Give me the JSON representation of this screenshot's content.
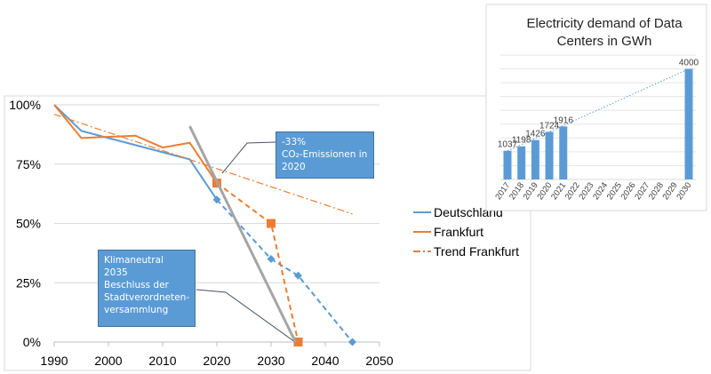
{
  "chart_data": [
    {
      "type": "line",
      "title": "",
      "xlabel": "",
      "ylabel": "",
      "xlim": [
        1990,
        2050
      ],
      "ylim": [
        0,
        100
      ],
      "x_ticks": [
        "1990",
        "2000",
        "2010",
        "2020",
        "2030",
        "2040",
        "2050"
      ],
      "y_ticks": [
        "0%",
        "25%",
        "50%",
        "75%",
        "100%"
      ],
      "grid": "horizontal",
      "legend_position": "right",
      "series": [
        {
          "name": "Deutschland",
          "color": "#5b9bd5",
          "style": "solid",
          "x": [
            1990,
            1995,
            2000,
            2005,
            2010,
            2015,
            2020
          ],
          "y": [
            100,
            89,
            86,
            83,
            80,
            77,
            60
          ]
        },
        {
          "name": "Frankfurt",
          "color": "#ed7d31",
          "style": "solid",
          "x": [
            1990,
            1995,
            2000,
            2005,
            2010,
            2015,
            2020
          ],
          "y": [
            100,
            86,
            86.5,
            87,
            82,
            84,
            67
          ]
        },
        {
          "name": "Trend Frankfurt",
          "color": "#ed7d31",
          "style": "dashdot",
          "x": [
            1990,
            2045
          ],
          "y": [
            96,
            54
          ]
        },
        {
          "color": "#5b9bd5",
          "style": "dashed",
          "marker": "diamond",
          "x": [
            2020,
            2030,
            2035,
            2045
          ],
          "y": [
            60,
            35,
            28,
            0
          ]
        },
        {
          "color": "#ed7d31",
          "style": "dashed",
          "marker": "square",
          "x": [
            2020,
            2030,
            2035
          ],
          "y": [
            67,
            50,
            0
          ]
        },
        {
          "color": "#a5a5a5",
          "style": "solid",
          "x": [
            2015,
            2034.5
          ],
          "y": [
            91,
            0
          ]
        }
      ],
      "annotations": [
        {
          "lines": [
            "-33%",
            "CO₂-Emissionen in",
            "2020"
          ]
        },
        {
          "lines": [
            "Klimaneutral 2035",
            "Beschluss der",
            "Stadtverordneten-",
            "versammlung"
          ]
        }
      ]
    },
    {
      "type": "bar",
      "title": "Electricity demand of Data Centers in GWh",
      "title_lines": [
        "Electricity demand of Data",
        "Centers in GWh"
      ],
      "categories": [
        "2017",
        "2018",
        "2019",
        "2020",
        "2021",
        "2022",
        "2023",
        "2024",
        "2025",
        "2026",
        "2027",
        "2028",
        "2029",
        "2030"
      ],
      "values": [
        1037,
        1198,
        1426,
        1724,
        1916,
        null,
        null,
        null,
        null,
        null,
        null,
        null,
        null,
        4000
      ],
      "data_labels": [
        "1037",
        "1198",
        "1426",
        "1724",
        "1916",
        "",
        "",
        "",
        "",
        "",
        "",
        "",
        "",
        "4000"
      ],
      "ylim": [
        0,
        4500
      ],
      "grid": "horizontal",
      "trendline": "dotted linear",
      "color": "#5b9bd5"
    }
  ]
}
